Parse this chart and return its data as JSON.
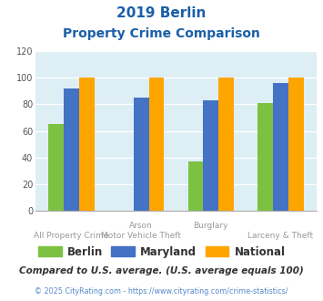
{
  "title_line1": "2019 Berlin",
  "title_line2": "Property Crime Comparison",
  "berlin": [
    65,
    0,
    37,
    81
  ],
  "maryland": [
    92,
    85,
    83,
    96
  ],
  "national": [
    100,
    100,
    100,
    100
  ],
  "berlin_color": "#7dc142",
  "maryland_color": "#4472c4",
  "national_color": "#ffa500",
  "ylim": [
    0,
    120
  ],
  "yticks": [
    0,
    20,
    40,
    60,
    80,
    100,
    120
  ],
  "bg_color": "#ddeef5",
  "legend_labels": [
    "Berlin",
    "Maryland",
    "National"
  ],
  "footnote1": "Compared to U.S. average. (U.S. average equals 100)",
  "footnote2": "© 2025 CityRating.com - https://www.cityrating.com/crime-statistics/",
  "title_color": "#1a5fa8",
  "footnote1_color": "#333333",
  "footnote2_color": "#5588cc",
  "label_color": "#999999"
}
